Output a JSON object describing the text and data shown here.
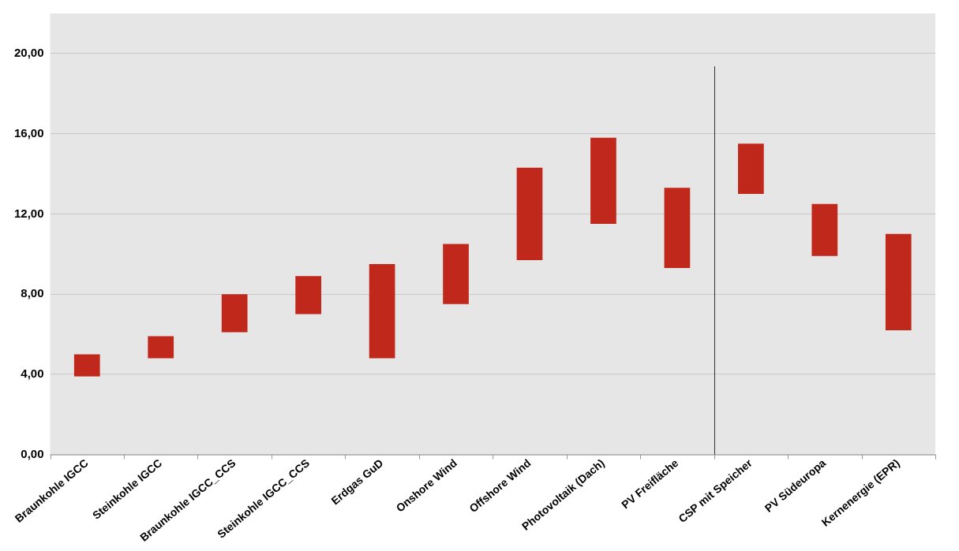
{
  "chart_data": {
    "type": "bar",
    "categories": [
      "Braunkohle IGCC",
      "Steinkohle IGCC",
      "Braunkohle IGCC_CCS",
      "Steinkohle IGCC_CCS",
      "Erdgas GuD",
      "Onshore Wind",
      "Offshore Wind",
      "Photovoltaik (Dach)",
      "PV Freifläche",
      "CSP mit Speicher",
      "PV Südeuropa",
      "Kernenergie (EPR)"
    ],
    "base": [
      3.9,
      4.8,
      6.1,
      7.0,
      4.8,
      7.5,
      9.7,
      11.5,
      9.3,
      13.0,
      9.9,
      6.2
    ],
    "values": [
      1.1,
      1.1,
      1.9,
      1.9,
      4.7,
      3.0,
      4.6,
      4.3,
      4.0,
      2.5,
      2.6,
      4.8
    ],
    "color": "#c0281c",
    "ylim": [
      0,
      22
    ],
    "yticks": [
      {
        "value": 0,
        "label": "0,00"
      },
      {
        "value": 4,
        "label": "4,00"
      },
      {
        "value": 8,
        "label": "8,00"
      },
      {
        "value": 12,
        "label": "12,00"
      },
      {
        "value": 16,
        "label": "16,00"
      },
      {
        "value": 20,
        "label": "20,00"
      }
    ],
    "ref_lines": [
      {
        "axis": "x",
        "value": "CSP mit Speicher",
        "color": "#333333"
      }
    ],
    "grid": "y",
    "legend": false
  }
}
